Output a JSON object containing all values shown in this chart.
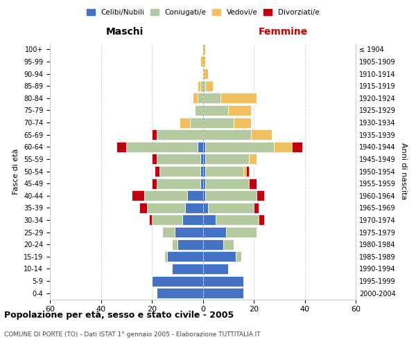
{
  "age_groups": [
    "0-4",
    "5-9",
    "10-14",
    "15-19",
    "20-24",
    "25-29",
    "30-34",
    "35-39",
    "40-44",
    "45-49",
    "50-54",
    "55-59",
    "60-64",
    "65-69",
    "70-74",
    "75-79",
    "80-84",
    "85-89",
    "90-94",
    "95-99",
    "100+"
  ],
  "birth_years": [
    "2000-2004",
    "1995-1999",
    "1990-1994",
    "1985-1989",
    "1980-1984",
    "1975-1979",
    "1970-1974",
    "1965-1969",
    "1960-1964",
    "1955-1959",
    "1950-1954",
    "1945-1949",
    "1940-1944",
    "1935-1939",
    "1930-1934",
    "1925-1929",
    "1920-1924",
    "1915-1919",
    "1910-1914",
    "1905-1909",
    "≤ 1904"
  ],
  "colors": {
    "celibe": "#4472C4",
    "coniugato": "#B5C9A0",
    "vedovo": "#F0C060",
    "divorziato": "#C0000C"
  },
  "males": {
    "celibe": [
      18,
      20,
      12,
      14,
      10,
      11,
      8,
      7,
      6,
      1,
      1,
      1,
      2,
      0,
      0,
      0,
      0,
      0,
      0,
      0,
      0
    ],
    "coniugato": [
      0,
      0,
      0,
      1,
      2,
      5,
      12,
      15,
      17,
      17,
      16,
      17,
      28,
      18,
      5,
      3,
      2,
      1,
      0,
      0,
      0
    ],
    "vedovo": [
      0,
      0,
      0,
      0,
      0,
      0,
      0,
      0,
      0,
      0,
      0,
      0,
      0,
      0,
      4,
      0,
      2,
      1,
      0,
      1,
      0
    ],
    "divorziato": [
      0,
      0,
      0,
      0,
      0,
      0,
      1,
      3,
      5,
      2,
      2,
      2,
      4,
      2,
      0,
      0,
      0,
      0,
      0,
      0,
      0
    ]
  },
  "females": {
    "nubile": [
      16,
      16,
      10,
      13,
      8,
      9,
      5,
      2,
      1,
      1,
      1,
      1,
      1,
      0,
      0,
      0,
      0,
      0,
      0,
      0,
      0
    ],
    "coniugata": [
      0,
      0,
      0,
      2,
      4,
      12,
      17,
      18,
      20,
      17,
      15,
      17,
      27,
      19,
      12,
      10,
      7,
      1,
      0,
      0,
      0
    ],
    "vedova": [
      0,
      0,
      0,
      0,
      0,
      0,
      0,
      0,
      0,
      0,
      1,
      3,
      7,
      8,
      7,
      9,
      14,
      3,
      2,
      1,
      1
    ],
    "divorziata": [
      0,
      0,
      0,
      0,
      0,
      0,
      2,
      2,
      3,
      3,
      1,
      0,
      4,
      0,
      0,
      0,
      0,
      0,
      0,
      0,
      0
    ]
  },
  "title_main": "Popolazione per età, sesso e stato civile - 2005",
  "title_sub": "COMUNE DI PORTE (TO) - Dati ISTAT 1° gennaio 2005 - Elaborazione TUTTITALIA.IT",
  "xlabel_left": "Maschi",
  "xlabel_right": "Femmine",
  "ylabel_left": "Fasce di età",
  "ylabel_right": "Anni di nascita",
  "xlim": 60,
  "legend_labels": [
    "Celibi/Nubili",
    "Coniugati/e",
    "Vedovi/e",
    "Divorziati/e"
  ],
  "background_color": "#ffffff",
  "grid_color": "#cccccc"
}
